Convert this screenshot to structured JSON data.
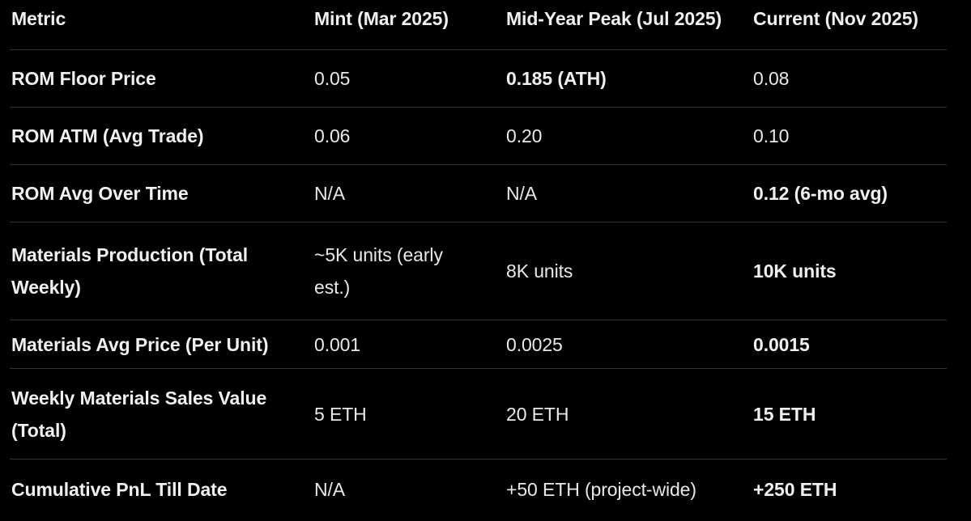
{
  "colors": {
    "background": "#000000",
    "text": "#e7e9ea",
    "bold_text": "#eef0f1",
    "divider": "#2f3336"
  },
  "chart_data": {
    "type": "table",
    "columns": [
      "Metric",
      "Mint (Mar 2025)",
      "Mid-Year Peak (Jul 2025)",
      "Current (Nov 2025)"
    ],
    "rows": [
      [
        "ROM Floor Price",
        "0.05",
        "0.185 (ATH)",
        "0.08"
      ],
      [
        "ROM ATM (Avg Trade)",
        "0.06",
        "0.20",
        "0.10"
      ],
      [
        "ROM Avg Over Time",
        "N/A",
        "N/A",
        "0.12 (6-mo avg)"
      ],
      [
        "Materials Production (Total Weekly)",
        "~5K units (early est.)",
        "8K units",
        "10K units"
      ],
      [
        "Materials Avg Price (Per Unit)",
        "0.001",
        "0.0025",
        "0.0015"
      ],
      [
        "Weekly Materials Sales Value (Total)",
        "5 ETH",
        "20 ETH",
        "15 ETH"
      ],
      [
        "Cumulative PnL Till Date",
        "N/A",
        "+50 ETH (project-wide)",
        "+250 ETH"
      ]
    ],
    "bold_values": [
      "0.185 (ATH)",
      "0.12 (6-mo avg)",
      "10K units",
      "0.0015",
      "15 ETH",
      "+250 ETH"
    ],
    "grid": "horizontal-dividers-only",
    "title": ""
  }
}
